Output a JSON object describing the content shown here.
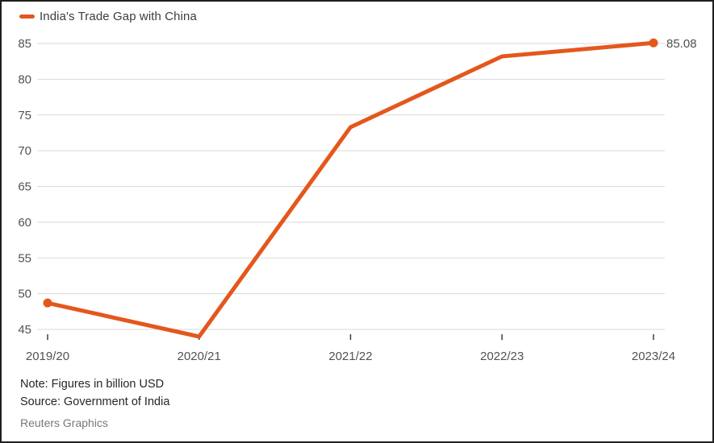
{
  "legend": {
    "label": "India's Trade Gap with China"
  },
  "footer": {
    "note": "Note: Figures in billion USD",
    "source": "Source: Government of India",
    "credit": "Reuters Graphics"
  },
  "chart_data": {
    "type": "line",
    "title": "India's Trade Gap with China",
    "categories": [
      "2019/20",
      "2020/21",
      "2021/22",
      "2022/23",
      "2023/24"
    ],
    "series": [
      {
        "name": "India's Trade Gap with China",
        "values": [
          48.7,
          44.0,
          73.3,
          83.2,
          85.08
        ]
      }
    ],
    "unit": "billion USD",
    "xlabel": "",
    "ylabel": "",
    "yticks": [
      45,
      50,
      55,
      60,
      65,
      70,
      75,
      80,
      85
    ],
    "ylim": [
      43.5,
      86
    ],
    "grid": "horizontal",
    "legend_position": "top-left",
    "end_label": "85.08",
    "markers_on": [
      0,
      4
    ],
    "colors": {
      "line": "#e4571c",
      "grid": "#d9d9d9",
      "axis_text": "#525252",
      "tick": "#3f3f3f",
      "end_label": "#4f4f4f"
    }
  }
}
